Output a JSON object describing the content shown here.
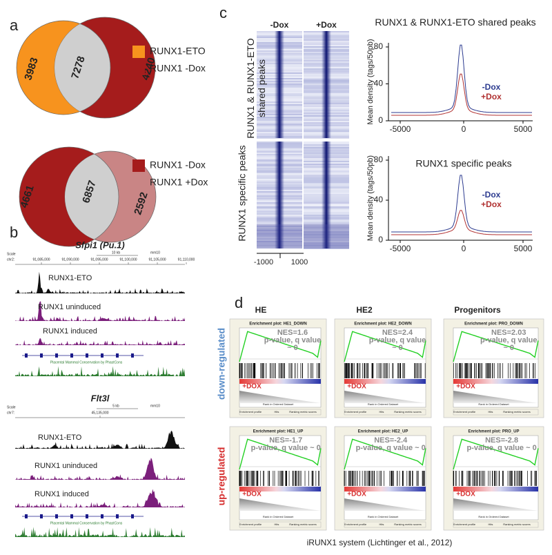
{
  "panels": {
    "a": {
      "label": "a",
      "venn1": {
        "left": "3983",
        "center": "7278",
        "right": "4240",
        "legend": [
          "RUNX1-ETO",
          "RUNX1 -Dox"
        ]
      },
      "venn2": {
        "left": "4661",
        "center": "6857",
        "right": "2592",
        "legend": [
          "RUNX1 -Dox",
          "RUNX1 +Dox"
        ]
      }
    },
    "b": {
      "label": "b",
      "locus1": {
        "title": "Sfpi1 (Pu.1)",
        "scale": [
          "Scale",
          "chr2:",
          "10 kb",
          "mm10",
          "91,085,000",
          "91,090,000",
          "91,095,000",
          "91,100,000",
          "91,105,000",
          "91,110,000"
        ],
        "tracks": [
          "RUNX1-ETO",
          "RUNX1 uninduced",
          "RUNX1 induced"
        ],
        "conservation": "Placental Mammal Conservation by PhastCons"
      },
      "locus2": {
        "title": "Flt3l",
        "scale": [
          "Scale",
          "chr7:",
          "5 kb",
          "mm10",
          "45,135,000"
        ],
        "tracks": [
          "RUNX1-ETO",
          "RUNX1 uninduced",
          "RUNX1 induced"
        ],
        "conservation": "Placental Mammal Conservation by PhastCons"
      }
    },
    "c": {
      "label": "c",
      "columns": [
        "-Dox",
        "+Dox"
      ],
      "rows": [
        "RUNX1 & RUNX1-ETO shared peaks",
        "RUNX1 specific peaks"
      ],
      "heatmap_ticks": [
        "-1000",
        "1000"
      ],
      "profiles": [
        {
          "title": "RUNX1 & RUNX1-ETO shared peaks",
          "ylabel": "Mean density (tags/50pb)",
          "yticks": [
            "0",
            "40",
            "80"
          ],
          "xticks": [
            "-5000",
            "0",
            "5000"
          ],
          "legend": [
            "-Dox",
            "+Dox"
          ]
        },
        {
          "title": "RUNX1 specific peaks",
          "ylabel": "Mean density (tags/50pb)",
          "yticks": [
            "0",
            "40",
            "80"
          ],
          "xticks": [
            "-5000",
            "0",
            "5000"
          ],
          "legend": [
            "-Dox",
            "+Dox"
          ]
        }
      ]
    },
    "d": {
      "label": "d",
      "columns": [
        "HE",
        "HE2",
        "Progenitors"
      ],
      "rows": [
        "down-regulated",
        "up-regulated"
      ],
      "common": {
        "x_label": "Rank in Ordered Dataset",
        "legend": [
          "Enrichment profile",
          "Hits",
          "Ranking metric scores"
        ]
      },
      "plots": [
        {
          "title": "Enrichment plot: HE1_DOWN",
          "stats": [
            "NES=1.6",
            "p-value, q value",
            "~ 0"
          ],
          "tag": "+DOX"
        },
        {
          "title": "Enrichment plot: HE2_DOWN",
          "stats": [
            "NES=2.4",
            "p-value, q value",
            "~ 0"
          ],
          "tag": "+DOX"
        },
        {
          "title": "Enrichment plot: PRO_DOWN",
          "stats": [
            "NES=2.03",
            "p-value, q value",
            "~ 0"
          ],
          "tag": "+DOX"
        },
        {
          "title": "Enrichment plot: HE1_UP",
          "stats": [
            "NES=-1.7",
            "p-value, q value ~ 0"
          ],
          "tag": "+DOX"
        },
        {
          "title": "Enrichment plot: HE2_UP",
          "stats": [
            "NES=-2.4",
            "p-value, q value ~ 0"
          ],
          "tag": "+DOX"
        },
        {
          "title": "Enrichment plot: PRO_UP",
          "stats": [
            "NES=-2.8",
            "p-value, q value ~ 0"
          ],
          "tag": "+DOX"
        }
      ]
    }
  },
  "caption": "iRUNX1 system (Lichtinger et al., 2012)"
}
